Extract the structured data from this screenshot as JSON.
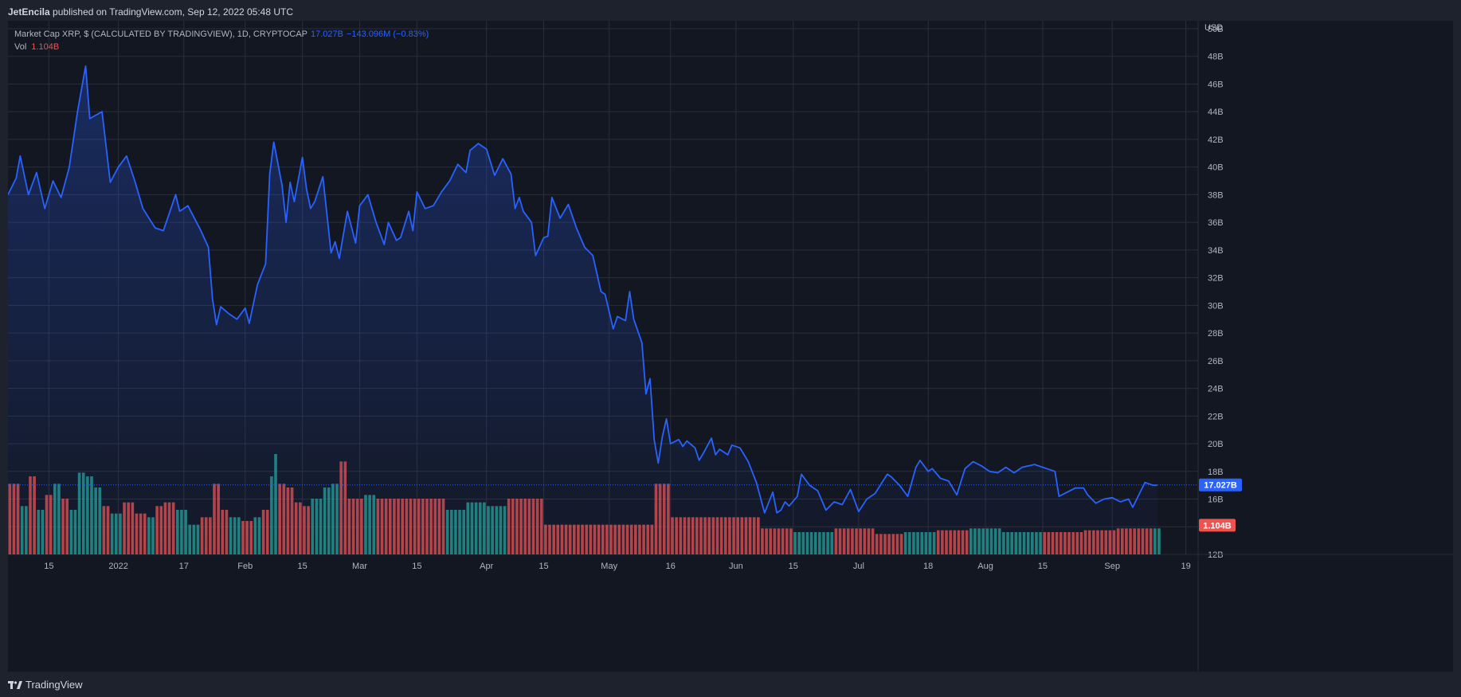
{
  "header": {
    "author": "JetEncila",
    "published_text": "published on TradingView.com, Sep 12, 2022 05:48 UTC"
  },
  "legend": {
    "symbol": "Market Cap XRP, $ (CALCULATED BY TRADINGVIEW), 1D, CRYPTOCAP",
    "last_value": "17.027B",
    "change": "−143.096M (−0.83%)",
    "vol_label": "Vol",
    "vol_value": "1.104B"
  },
  "footer": {
    "brand": "TradingView"
  },
  "colors": {
    "line": "#2962ff",
    "vol_up": "#26a69a",
    "vol_down": "#ef5350",
    "background": "#131722",
    "grid": "#2a2e39",
    "text": "#b2b5be"
  },
  "chart_data": {
    "type": "area",
    "unit": "USD",
    "ylim": [
      12,
      50
    ],
    "y_ticks": [
      "12B",
      "14B",
      "16B",
      "18B",
      "20B",
      "22B",
      "24B",
      "26B",
      "28B",
      "30B",
      "32B",
      "34B",
      "36B",
      "38B",
      "40B",
      "42B",
      "44B",
      "46B",
      "48B",
      "50B"
    ],
    "x_ticks": [
      {
        "label": "15",
        "date": "2021-12-15"
      },
      {
        "label": "2022",
        "date": "2022-01-01"
      },
      {
        "label": "17",
        "date": "2022-01-17"
      },
      {
        "label": "Feb",
        "date": "2022-02-01"
      },
      {
        "label": "15",
        "date": "2022-02-15"
      },
      {
        "label": "Mar",
        "date": "2022-03-01"
      },
      {
        "label": "15",
        "date": "2022-03-15"
      },
      {
        "label": "Apr",
        "date": "2022-04-01"
      },
      {
        "label": "15",
        "date": "2022-04-15"
      },
      {
        "label": "May",
        "date": "2022-05-01"
      },
      {
        "label": "16",
        "date": "2022-05-16"
      },
      {
        "label": "Jun",
        "date": "2022-06-01"
      },
      {
        "label": "15",
        "date": "2022-06-15"
      },
      {
        "label": "Jul",
        "date": "2022-07-01"
      },
      {
        "label": "18",
        "date": "2022-07-18"
      },
      {
        "label": "Aug",
        "date": "2022-08-01"
      },
      {
        "label": "15",
        "date": "2022-08-15"
      },
      {
        "label": "Sep",
        "date": "2022-09-01"
      },
      {
        "label": "19",
        "date": "2022-09-19"
      }
    ],
    "x_range": [
      "2021-12-05",
      "2022-09-22"
    ],
    "last_price_label": "17.027B",
    "last_price": 17.027,
    "volume_label": "1.104B",
    "market_cap_series": [
      {
        "date": "2021-12-05",
        "value": 38.0
      },
      {
        "date": "2021-12-07",
        "value": 39.2
      },
      {
        "date": "2021-12-08",
        "value": 40.8
      },
      {
        "date": "2021-12-10",
        "value": 38.0
      },
      {
        "date": "2021-12-12",
        "value": 39.6
      },
      {
        "date": "2021-12-14",
        "value": 37.0
      },
      {
        "date": "2021-12-16",
        "value": 39.0
      },
      {
        "date": "2021-12-18",
        "value": 37.8
      },
      {
        "date": "2021-12-20",
        "value": 40.0
      },
      {
        "date": "2021-12-22",
        "value": 44.0
      },
      {
        "date": "2021-12-24",
        "value": 47.3
      },
      {
        "date": "2021-12-25",
        "value": 43.5
      },
      {
        "date": "2021-12-28",
        "value": 44.0
      },
      {
        "date": "2021-12-30",
        "value": 38.9
      },
      {
        "date": "2022-01-01",
        "value": 40.0
      },
      {
        "date": "2022-01-03",
        "value": 40.8
      },
      {
        "date": "2022-01-05",
        "value": 39.0
      },
      {
        "date": "2022-01-07",
        "value": 37.0
      },
      {
        "date": "2022-01-10",
        "value": 35.6
      },
      {
        "date": "2022-01-12",
        "value": 35.4
      },
      {
        "date": "2022-01-15",
        "value": 38.0
      },
      {
        "date": "2022-01-16",
        "value": 36.8
      },
      {
        "date": "2022-01-18",
        "value": 37.2
      },
      {
        "date": "2022-01-21",
        "value": 35.5
      },
      {
        "date": "2022-01-23",
        "value": 34.2
      },
      {
        "date": "2022-01-24",
        "value": 30.5
      },
      {
        "date": "2022-01-25",
        "value": 28.6
      },
      {
        "date": "2022-01-26",
        "value": 29.9
      },
      {
        "date": "2022-01-28",
        "value": 29.4
      },
      {
        "date": "2022-01-30",
        "value": 29.0
      },
      {
        "date": "2022-02-01",
        "value": 29.8
      },
      {
        "date": "2022-02-02",
        "value": 28.7
      },
      {
        "date": "2022-02-04",
        "value": 31.5
      },
      {
        "date": "2022-02-06",
        "value": 33.0
      },
      {
        "date": "2022-02-07",
        "value": 39.5
      },
      {
        "date": "2022-02-08",
        "value": 41.8
      },
      {
        "date": "2022-02-10",
        "value": 38.7
      },
      {
        "date": "2022-02-11",
        "value": 36.0
      },
      {
        "date": "2022-02-12",
        "value": 38.9
      },
      {
        "date": "2022-02-13",
        "value": 37.5
      },
      {
        "date": "2022-02-15",
        "value": 40.7
      },
      {
        "date": "2022-02-16",
        "value": 38.4
      },
      {
        "date": "2022-02-17",
        "value": 37.0
      },
      {
        "date": "2022-02-18",
        "value": 37.5
      },
      {
        "date": "2022-02-20",
        "value": 39.3
      },
      {
        "date": "2022-02-22",
        "value": 33.8
      },
      {
        "date": "2022-02-23",
        "value": 34.6
      },
      {
        "date": "2022-02-24",
        "value": 33.4
      },
      {
        "date": "2022-02-26",
        "value": 36.8
      },
      {
        "date": "2022-02-28",
        "value": 34.5
      },
      {
        "date": "2022-03-01",
        "value": 37.2
      },
      {
        "date": "2022-03-03",
        "value": 38.0
      },
      {
        "date": "2022-03-05",
        "value": 36.0
      },
      {
        "date": "2022-03-07",
        "value": 34.4
      },
      {
        "date": "2022-03-08",
        "value": 36.0
      },
      {
        "date": "2022-03-10",
        "value": 34.7
      },
      {
        "date": "2022-03-11",
        "value": 34.9
      },
      {
        "date": "2022-03-13",
        "value": 36.8
      },
      {
        "date": "2022-03-14",
        "value": 35.4
      },
      {
        "date": "2022-03-15",
        "value": 38.2
      },
      {
        "date": "2022-03-17",
        "value": 37.0
      },
      {
        "date": "2022-03-19",
        "value": 37.2
      },
      {
        "date": "2022-03-21",
        "value": 38.2
      },
      {
        "date": "2022-03-23",
        "value": 39.0
      },
      {
        "date": "2022-03-25",
        "value": 40.2
      },
      {
        "date": "2022-03-27",
        "value": 39.6
      },
      {
        "date": "2022-03-28",
        "value": 41.2
      },
      {
        "date": "2022-03-30",
        "value": 41.7
      },
      {
        "date": "2022-04-01",
        "value": 41.3
      },
      {
        "date": "2022-04-03",
        "value": 39.4
      },
      {
        "date": "2022-04-05",
        "value": 40.6
      },
      {
        "date": "2022-04-07",
        "value": 39.5
      },
      {
        "date": "2022-04-08",
        "value": 37.0
      },
      {
        "date": "2022-04-09",
        "value": 37.8
      },
      {
        "date": "2022-04-10",
        "value": 36.8
      },
      {
        "date": "2022-04-12",
        "value": 36.0
      },
      {
        "date": "2022-04-13",
        "value": 33.6
      },
      {
        "date": "2022-04-15",
        "value": 34.9
      },
      {
        "date": "2022-04-16",
        "value": 35.0
      },
      {
        "date": "2022-04-17",
        "value": 37.8
      },
      {
        "date": "2022-04-19",
        "value": 36.3
      },
      {
        "date": "2022-04-21",
        "value": 37.3
      },
      {
        "date": "2022-04-23",
        "value": 35.6
      },
      {
        "date": "2022-04-25",
        "value": 34.2
      },
      {
        "date": "2022-04-27",
        "value": 33.6
      },
      {
        "date": "2022-04-29",
        "value": 31.0
      },
      {
        "date": "2022-04-30",
        "value": 30.8
      },
      {
        "date": "2022-05-02",
        "value": 28.3
      },
      {
        "date": "2022-05-03",
        "value": 29.2
      },
      {
        "date": "2022-05-05",
        "value": 28.9
      },
      {
        "date": "2022-05-06",
        "value": 31.0
      },
      {
        "date": "2022-05-07",
        "value": 29.0
      },
      {
        "date": "2022-05-09",
        "value": 27.3
      },
      {
        "date": "2022-05-10",
        "value": 23.6
      },
      {
        "date": "2022-05-11",
        "value": 24.7
      },
      {
        "date": "2022-05-12",
        "value": 20.3
      },
      {
        "date": "2022-05-13",
        "value": 18.6
      },
      {
        "date": "2022-05-14",
        "value": 20.5
      },
      {
        "date": "2022-05-15",
        "value": 21.8
      },
      {
        "date": "2022-05-16",
        "value": 20.0
      },
      {
        "date": "2022-05-18",
        "value": 20.3
      },
      {
        "date": "2022-05-19",
        "value": 19.8
      },
      {
        "date": "2022-05-20",
        "value": 20.2
      },
      {
        "date": "2022-05-22",
        "value": 19.7
      },
      {
        "date": "2022-05-23",
        "value": 18.8
      },
      {
        "date": "2022-05-24",
        "value": 19.3
      },
      {
        "date": "2022-05-26",
        "value": 20.4
      },
      {
        "date": "2022-05-27",
        "value": 19.2
      },
      {
        "date": "2022-05-28",
        "value": 19.6
      },
      {
        "date": "2022-05-30",
        "value": 19.2
      },
      {
        "date": "2022-05-31",
        "value": 19.9
      },
      {
        "date": "2022-06-02",
        "value": 19.7
      },
      {
        "date": "2022-06-04",
        "value": 18.7
      },
      {
        "date": "2022-06-06",
        "value": 17.2
      },
      {
        "date": "2022-06-08",
        "value": 15.0
      },
      {
        "date": "2022-06-10",
        "value": 16.5
      },
      {
        "date": "2022-06-11",
        "value": 15.0
      },
      {
        "date": "2022-06-12",
        "value": 15.2
      },
      {
        "date": "2022-06-13",
        "value": 15.8
      },
      {
        "date": "2022-06-14",
        "value": 15.5
      },
      {
        "date": "2022-06-16",
        "value": 16.2
      },
      {
        "date": "2022-06-17",
        "value": 17.8
      },
      {
        "date": "2022-06-19",
        "value": 17.0
      },
      {
        "date": "2022-06-21",
        "value": 16.6
      },
      {
        "date": "2022-06-23",
        "value": 15.2
      },
      {
        "date": "2022-06-25",
        "value": 15.8
      },
      {
        "date": "2022-06-27",
        "value": 15.6
      },
      {
        "date": "2022-06-29",
        "value": 16.7
      },
      {
        "date": "2022-07-01",
        "value": 15.1
      },
      {
        "date": "2022-07-03",
        "value": 16.0
      },
      {
        "date": "2022-07-05",
        "value": 16.4
      },
      {
        "date": "2022-07-08",
        "value": 17.8
      },
      {
        "date": "2022-07-09",
        "value": 17.6
      },
      {
        "date": "2022-07-11",
        "value": 17.0
      },
      {
        "date": "2022-07-13",
        "value": 16.2
      },
      {
        "date": "2022-07-15",
        "value": 18.3
      },
      {
        "date": "2022-07-16",
        "value": 18.8
      },
      {
        "date": "2022-07-18",
        "value": 18.0
      },
      {
        "date": "2022-07-19",
        "value": 18.2
      },
      {
        "date": "2022-07-21",
        "value": 17.5
      },
      {
        "date": "2022-07-23",
        "value": 17.3
      },
      {
        "date": "2022-07-25",
        "value": 16.3
      },
      {
        "date": "2022-07-27",
        "value": 18.2
      },
      {
        "date": "2022-07-29",
        "value": 18.7
      },
      {
        "date": "2022-07-31",
        "value": 18.4
      },
      {
        "date": "2022-08-02",
        "value": 18.0
      },
      {
        "date": "2022-08-04",
        "value": 17.9
      },
      {
        "date": "2022-08-06",
        "value": 18.3
      },
      {
        "date": "2022-08-08",
        "value": 17.9
      },
      {
        "date": "2022-08-10",
        "value": 18.3
      },
      {
        "date": "2022-08-13",
        "value": 18.5
      },
      {
        "date": "2022-08-16",
        "value": 18.2
      },
      {
        "date": "2022-08-18",
        "value": 18.0
      },
      {
        "date": "2022-08-19",
        "value": 16.2
      },
      {
        "date": "2022-08-21",
        "value": 16.5
      },
      {
        "date": "2022-08-23",
        "value": 16.8
      },
      {
        "date": "2022-08-25",
        "value": 16.8
      },
      {
        "date": "2022-08-26",
        "value": 16.3
      },
      {
        "date": "2022-08-28",
        "value": 15.7
      },
      {
        "date": "2022-08-30",
        "value": 16.0
      },
      {
        "date": "2022-09-01",
        "value": 16.1
      },
      {
        "date": "2022-09-03",
        "value": 15.8
      },
      {
        "date": "2022-09-05",
        "value": 16.0
      },
      {
        "date": "2022-09-06",
        "value": 15.4
      },
      {
        "date": "2022-09-08",
        "value": 16.6
      },
      {
        "date": "2022-09-09",
        "value": 17.2
      },
      {
        "date": "2022-09-11",
        "value": 17.0
      },
      {
        "date": "2022-09-12",
        "value": 17.0
      }
    ],
    "volume_series": [
      {
        "date": "2021-12-05",
        "value": 1.9,
        "dir": "down"
      },
      {
        "date": "2021-12-08",
        "value": 1.3,
        "dir": "up"
      },
      {
        "date": "2021-12-10",
        "value": 2.1,
        "dir": "down"
      },
      {
        "date": "2021-12-12",
        "value": 1.2,
        "dir": "up"
      },
      {
        "date": "2021-12-14",
        "value": 1.6,
        "dir": "down"
      },
      {
        "date": "2021-12-16",
        "value": 1.9,
        "dir": "up"
      },
      {
        "date": "2021-12-18",
        "value": 1.5,
        "dir": "down"
      },
      {
        "date": "2021-12-20",
        "value": 1.2,
        "dir": "up"
      },
      {
        "date": "2021-12-22",
        "value": 2.2,
        "dir": "up"
      },
      {
        "date": "2021-12-24",
        "value": 2.1,
        "dir": "up"
      },
      {
        "date": "2021-12-26",
        "value": 1.8,
        "dir": "up"
      },
      {
        "date": "2021-12-28",
        "value": 1.3,
        "dir": "down"
      },
      {
        "date": "2021-12-30",
        "value": 1.1,
        "dir": "up"
      },
      {
        "date": "2022-01-02",
        "value": 1.4,
        "dir": "down"
      },
      {
        "date": "2022-01-05",
        "value": 1.1,
        "dir": "down"
      },
      {
        "date": "2022-01-08",
        "value": 1.0,
        "dir": "up"
      },
      {
        "date": "2022-01-10",
        "value": 1.3,
        "dir": "down"
      },
      {
        "date": "2022-01-12",
        "value": 1.4,
        "dir": "down"
      },
      {
        "date": "2022-01-15",
        "value": 1.2,
        "dir": "up"
      },
      {
        "date": "2022-01-18",
        "value": 0.8,
        "dir": "up"
      },
      {
        "date": "2022-01-21",
        "value": 1.0,
        "dir": "down"
      },
      {
        "date": "2022-01-24",
        "value": 1.9,
        "dir": "down"
      },
      {
        "date": "2022-01-26",
        "value": 1.2,
        "dir": "down"
      },
      {
        "date": "2022-01-28",
        "value": 1.0,
        "dir": "up"
      },
      {
        "date": "2022-01-31",
        "value": 0.9,
        "dir": "down"
      },
      {
        "date": "2022-02-03",
        "value": 1.0,
        "dir": "up"
      },
      {
        "date": "2022-02-05",
        "value": 1.2,
        "dir": "down"
      },
      {
        "date": "2022-02-07",
        "value": 2.1,
        "dir": "up"
      },
      {
        "date": "2022-02-08",
        "value": 2.7,
        "dir": "up"
      },
      {
        "date": "2022-02-09",
        "value": 1.9,
        "dir": "down"
      },
      {
        "date": "2022-02-11",
        "value": 1.8,
        "dir": "down"
      },
      {
        "date": "2022-02-13",
        "value": 1.4,
        "dir": "down"
      },
      {
        "date": "2022-02-15",
        "value": 1.3,
        "dir": "down"
      },
      {
        "date": "2022-02-17",
        "value": 1.5,
        "dir": "up"
      },
      {
        "date": "2022-02-20",
        "value": 1.8,
        "dir": "up"
      },
      {
        "date": "2022-02-22",
        "value": 1.9,
        "dir": "up"
      },
      {
        "date": "2022-02-24",
        "value": 2.5,
        "dir": "down"
      },
      {
        "date": "2022-02-26",
        "value": 1.5,
        "dir": "down"
      },
      {
        "date": "2022-02-28",
        "value": 1.5,
        "dir": "down"
      },
      {
        "date": "2022-03-02",
        "value": 1.6,
        "dir": "up"
      },
      {
        "date": "2022-03-05",
        "value": 1.5,
        "dir": "down"
      },
      {
        "date": "2022-03-10",
        "value": 1.5,
        "dir": "down"
      },
      {
        "date": "2022-03-17",
        "value": 1.5,
        "dir": "down"
      },
      {
        "date": "2022-03-22",
        "value": 1.2,
        "dir": "up"
      },
      {
        "date": "2022-03-27",
        "value": 1.4,
        "dir": "up"
      },
      {
        "date": "2022-04-01",
        "value": 1.3,
        "dir": "up"
      },
      {
        "date": "2022-04-06",
        "value": 1.5,
        "dir": "down"
      },
      {
        "date": "2022-04-15",
        "value": 0.8,
        "dir": "down"
      },
      {
        "date": "2022-05-01",
        "value": 0.8,
        "dir": "down"
      },
      {
        "date": "2022-05-12",
        "value": 1.9,
        "dir": "down"
      },
      {
        "date": "2022-05-16",
        "value": 1.0,
        "dir": "down"
      },
      {
        "date": "2022-06-01",
        "value": 1.0,
        "dir": "down"
      },
      {
        "date": "2022-06-07",
        "value": 0.7,
        "dir": "down"
      },
      {
        "date": "2022-06-15",
        "value": 0.6,
        "dir": "up"
      },
      {
        "date": "2022-06-25",
        "value": 0.7,
        "dir": "down"
      },
      {
        "date": "2022-07-05",
        "value": 0.55,
        "dir": "down"
      },
      {
        "date": "2022-07-12",
        "value": 0.6,
        "dir": "up"
      },
      {
        "date": "2022-07-20",
        "value": 0.65,
        "dir": "down"
      },
      {
        "date": "2022-07-28",
        "value": 0.7,
        "dir": "up"
      },
      {
        "date": "2022-08-05",
        "value": 0.6,
        "dir": "up"
      },
      {
        "date": "2022-08-15",
        "value": 0.6,
        "dir": "down"
      },
      {
        "date": "2022-08-25",
        "value": 0.65,
        "dir": "down"
      },
      {
        "date": "2022-09-02",
        "value": 0.7,
        "dir": "down"
      },
      {
        "date": "2022-09-11",
        "value": 0.7,
        "dir": "up"
      }
    ],
    "volume_ylim": [
      0,
      3.0
    ],
    "grid": true,
    "legend_position": "top-left"
  }
}
